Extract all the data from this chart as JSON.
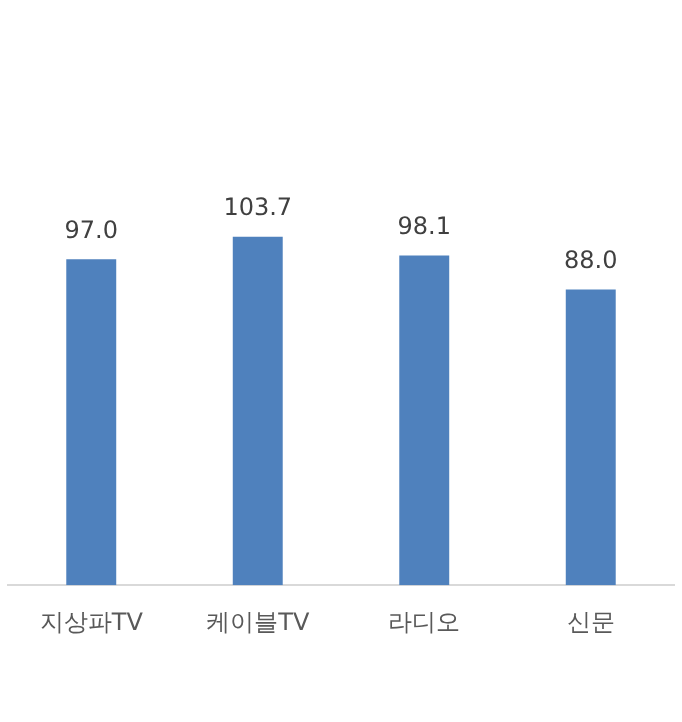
{
  "chart_data": {
    "type": "bar",
    "categories": [
      "지상파TV",
      "케이블TV",
      "라디오",
      "신문"
    ],
    "values": [
      97.0,
      103.7,
      98.1,
      88.0
    ],
    "value_labels": [
      "97.0",
      "103.7",
      "98.1",
      "88.0"
    ],
    "color": "#4f81bd",
    "grid": false,
    "legend": false
  }
}
